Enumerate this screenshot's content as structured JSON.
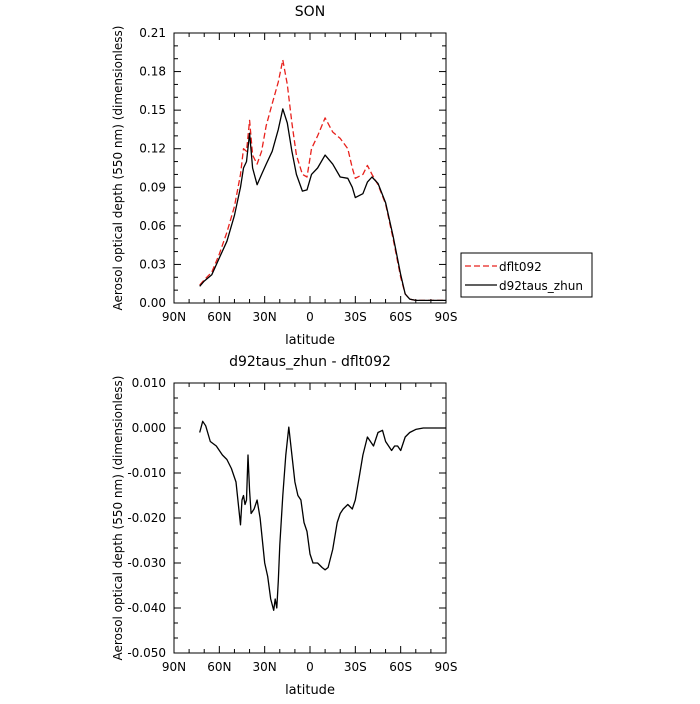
{
  "chart_data": [
    {
      "type": "line",
      "title": "SON",
      "xlabel": "latitude",
      "ylabel": "Aerosol optical depth (550 nm) (dimensionless)",
      "xlim": [
        90,
        -90
      ],
      "ylim": [
        0,
        0.21
      ],
      "x_ticks": [
        90,
        60,
        30,
        0,
        -30,
        -60,
        -90
      ],
      "x_tick_labels": [
        "90N",
        "60N",
        "30N",
        "0",
        "30S",
        "60S",
        "90S"
      ],
      "y_ticks": [
        0,
        0.03,
        0.06,
        0.09,
        0.12,
        0.15,
        0.18,
        0.21
      ],
      "y_tick_labels": [
        "0.00",
        "0.03",
        "0.06",
        "0.09",
        "0.12",
        "0.15",
        "0.18",
        "0.21"
      ],
      "legend_position": "right",
      "series": [
        {
          "name": "dflt092",
          "color": "#e8211c",
          "dash": "dashed",
          "x": [
            73,
            70,
            65,
            60,
            55,
            50,
            46,
            44,
            42,
            40,
            38,
            35,
            32,
            29,
            25,
            21,
            18,
            15,
            12,
            9,
            5,
            2,
            -1,
            -5,
            -10,
            -15,
            -20,
            -25,
            -28,
            -30,
            -35,
            -38,
            -41,
            -45,
            -50,
            -55,
            -60,
            -63,
            -66,
            -70,
            -75,
            -80,
            -85,
            -90
          ],
          "y": [
            0.014,
            0.018,
            0.024,
            0.038,
            0.055,
            0.075,
            0.1,
            0.12,
            0.118,
            0.142,
            0.115,
            0.108,
            0.118,
            0.138,
            0.155,
            0.172,
            0.189,
            0.17,
            0.14,
            0.115,
            0.1,
            0.098,
            0.12,
            0.13,
            0.144,
            0.133,
            0.128,
            0.12,
            0.105,
            0.097,
            0.1,
            0.107,
            0.1,
            0.092,
            0.077,
            0.05,
            0.02,
            0.007,
            0.003,
            0.002,
            0.002,
            0.002,
            0.002,
            0.002
          ]
        },
        {
          "name": "d92taus_zhun",
          "color": "#000000",
          "dash": "solid",
          "x": [
            73,
            70,
            65,
            60,
            55,
            50,
            46,
            44,
            42,
            40,
            38,
            35,
            32,
            29,
            25,
            21,
            18,
            15,
            12,
            9,
            5,
            2,
            -1,
            -5,
            -10,
            -15,
            -20,
            -25,
            -28,
            -30,
            -35,
            -38,
            -41,
            -45,
            -50,
            -55,
            -60,
            -63,
            -66,
            -70,
            -75,
            -80,
            -85,
            -90
          ],
          "y": [
            0.013,
            0.017,
            0.022,
            0.035,
            0.048,
            0.068,
            0.09,
            0.105,
            0.11,
            0.132,
            0.105,
            0.092,
            0.1,
            0.108,
            0.118,
            0.135,
            0.151,
            0.14,
            0.118,
            0.1,
            0.087,
            0.088,
            0.1,
            0.105,
            0.115,
            0.108,
            0.098,
            0.097,
            0.09,
            0.082,
            0.085,
            0.094,
            0.098,
            0.093,
            0.078,
            0.052,
            0.022,
            0.007,
            0.003,
            0.002,
            0.002,
            0.002,
            0.002,
            0.002
          ]
        }
      ]
    },
    {
      "type": "line",
      "title": "d92taus_zhun - dflt092",
      "xlabel": "latitude",
      "ylabel": "Aerosol optical depth (550 nm) (dimensionless)",
      "xlim": [
        90,
        -90
      ],
      "ylim": [
        -0.05,
        0.01
      ],
      "x_ticks": [
        90,
        60,
        30,
        0,
        -30,
        -60,
        -90
      ],
      "x_tick_labels": [
        "90N",
        "60N",
        "30N",
        "0",
        "30S",
        "60S",
        "90S"
      ],
      "y_ticks": [
        -0.05,
        -0.04,
        -0.03,
        -0.02,
        -0.01,
        0,
        0.01
      ],
      "y_tick_labels": [
        "-0.050",
        "-0.040",
        "-0.030",
        "-0.020",
        "-0.010",
        "0.000",
        "0.010"
      ],
      "series": [
        {
          "name": "",
          "color": "#000000",
          "dash": "solid",
          "x": [
            73,
            71,
            69,
            66,
            62,
            58,
            55,
            52,
            49,
            46,
            45,
            44,
            43,
            42,
            41,
            40,
            39,
            37,
            35,
            33,
            30,
            28,
            26,
            24,
            23,
            22,
            21,
            20,
            18,
            16,
            14,
            12,
            10,
            8,
            6,
            4,
            2,
            0,
            -2,
            -5,
            -8,
            -10,
            -12,
            -15,
            -18,
            -20,
            -22,
            -25,
            -28,
            -30,
            -33,
            -35,
            -38,
            -42,
            -45,
            -48,
            -50,
            -52,
            -54,
            -56,
            -58,
            -60,
            -63,
            -66,
            -70,
            -75,
            -80,
            -85,
            -90
          ],
          "y": [
            -0.001,
            0.0015,
            0.0005,
            -0.003,
            -0.004,
            -0.006,
            -0.007,
            -0.009,
            -0.012,
            -0.0215,
            -0.016,
            -0.015,
            -0.017,
            -0.016,
            -0.006,
            -0.014,
            -0.019,
            -0.018,
            -0.016,
            -0.02,
            -0.03,
            -0.033,
            -0.038,
            -0.0405,
            -0.038,
            -0.04,
            -0.034,
            -0.026,
            -0.015,
            -0.006,
            0.0002,
            -0.006,
            -0.012,
            -0.015,
            -0.016,
            -0.021,
            -0.023,
            -0.028,
            -0.03,
            -0.03,
            -0.031,
            -0.0315,
            -0.031,
            -0.027,
            -0.021,
            -0.019,
            -0.018,
            -0.017,
            -0.018,
            -0.016,
            -0.01,
            -0.006,
            -0.002,
            -0.004,
            -0.001,
            -0.0005,
            -0.003,
            -0.004,
            -0.005,
            -0.004,
            -0.004,
            -0.005,
            -0.002,
            -0.001,
            -0.0003,
            0.0,
            0.0,
            0.0,
            0.0
          ]
        }
      ]
    }
  ]
}
